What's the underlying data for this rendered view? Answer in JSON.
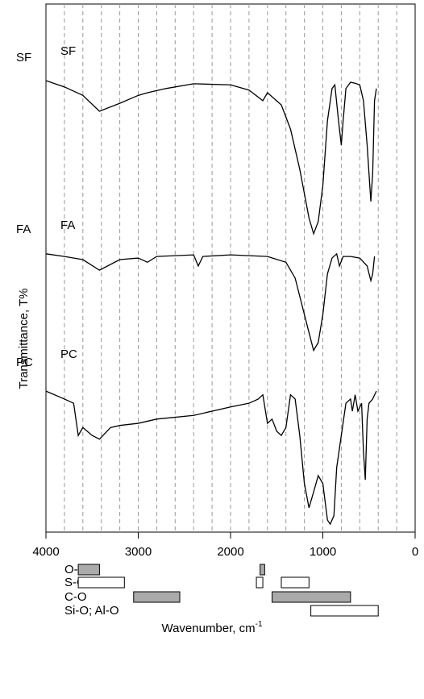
{
  "chart_data": {
    "type": "line",
    "y_label": "Transmittance, T%",
    "x_label": "Wavenumber, cm",
    "x_label_superscript": "-1",
    "xlim": [
      4000,
      0
    ],
    "ylim": [
      0,
      100
    ],
    "xticks": [
      4000,
      3000,
      2000,
      1000,
      0
    ],
    "grid_x": [
      3800,
      3600,
      3400,
      3200,
      3000,
      2800,
      2600,
      2400,
      2200,
      2000,
      1800,
      1600,
      1400,
      1200,
      1000,
      800,
      600,
      400,
      200
    ],
    "series": [
      {
        "name": "SF",
        "color": "#000000",
        "x": [
          4000,
          3800,
          3600,
          3420,
          3200,
          3000,
          2900,
          2700,
          2400,
          2000,
          1800,
          1650,
          1600,
          1450,
          1350,
          1250,
          1150,
          1100,
          1050,
          1000,
          950,
          900,
          870,
          830,
          800,
          780,
          750,
          700,
          650,
          600,
          560,
          520,
          480,
          460,
          440,
          420
        ],
        "values": [
          85.5,
          84.3,
          82.7,
          79.7,
          81.2,
          82.7,
          83.2,
          84.0,
          84.9,
          84.7,
          83.7,
          81.7,
          83.2,
          80.9,
          76.3,
          68.7,
          59.5,
          56.5,
          58.8,
          65.6,
          77.9,
          84.0,
          84.7,
          77.9,
          73.3,
          77.9,
          84.0,
          85.2,
          85.0,
          84.7,
          81.7,
          73.3,
          62.6,
          67.9,
          81.7,
          84.0
        ]
      },
      {
        "name": "FA",
        "color": "#000000",
        "x": [
          4000,
          3800,
          3600,
          3420,
          3200,
          3000,
          2900,
          2800,
          2400,
          2350,
          2300,
          2000,
          1600,
          1400,
          1300,
          1200,
          1100,
          1050,
          1000,
          950,
          900,
          850,
          820,
          780,
          700,
          600,
          520,
          480,
          460,
          440
        ],
        "values": [
          52.7,
          52.2,
          51.6,
          49.6,
          51.6,
          51.9,
          51.1,
          52.2,
          52.5,
          50.4,
          52.2,
          52.5,
          52.2,
          51.1,
          48.1,
          41.2,
          34.4,
          35.9,
          41.2,
          48.9,
          51.9,
          52.7,
          50.4,
          52.2,
          52.2,
          51.9,
          50.4,
          47.6,
          48.9,
          52.2
        ]
      },
      {
        "name": "PC",
        "color": "#000000",
        "x": [
          4000,
          3800,
          3700,
          3650,
          3600,
          3500,
          3420,
          3300,
          3200,
          3000,
          2800,
          2400,
          2000,
          1800,
          1700,
          1650,
          1600,
          1550,
          1500,
          1450,
          1400,
          1350,
          1300,
          1250,
          1200,
          1150,
          1100,
          1050,
          1000,
          950,
          920,
          880,
          850,
          800,
          750,
          700,
          680,
          650,
          620,
          580,
          560,
          540,
          520,
          500,
          460,
          420
        ],
        "values": [
          26.7,
          25.2,
          24.4,
          18.3,
          19.8,
          18.3,
          17.6,
          19.8,
          20.2,
          20.6,
          21.4,
          22.1,
          23.7,
          24.4,
          25.2,
          26.0,
          20.6,
          21.4,
          19.1,
          18.3,
          19.8,
          26.0,
          25.2,
          18.3,
          9.2,
          4.6,
          7.6,
          10.7,
          9.2,
          2.3,
          1.5,
          3.1,
          12.2,
          18.3,
          24.4,
          25.2,
          22.9,
          26.0,
          22.9,
          24.4,
          15.3,
          9.9,
          21.4,
          24.4,
          25.2,
          26.7
        ]
      }
    ],
    "bands": [
      {
        "name": "O-H",
        "color": "#aaaaaa",
        "ranges": [
          [
            3650,
            3420
          ],
          [
            1680,
            1630
          ]
        ]
      },
      {
        "name": "S-O",
        "color": "#ffffff",
        "ranges": [
          [
            3650,
            3150
          ],
          [
            1720,
            1650
          ],
          [
            1450,
            1150
          ]
        ]
      },
      {
        "name": "C-O",
        "color": "#aaaaaa",
        "ranges": [
          [
            3050,
            2550
          ],
          [
            1550,
            700
          ]
        ]
      },
      {
        "name": "Si-O; Al-O",
        "color": "#ffffff",
        "ranges": [
          [
            1130,
            400
          ]
        ]
      }
    ]
  }
}
